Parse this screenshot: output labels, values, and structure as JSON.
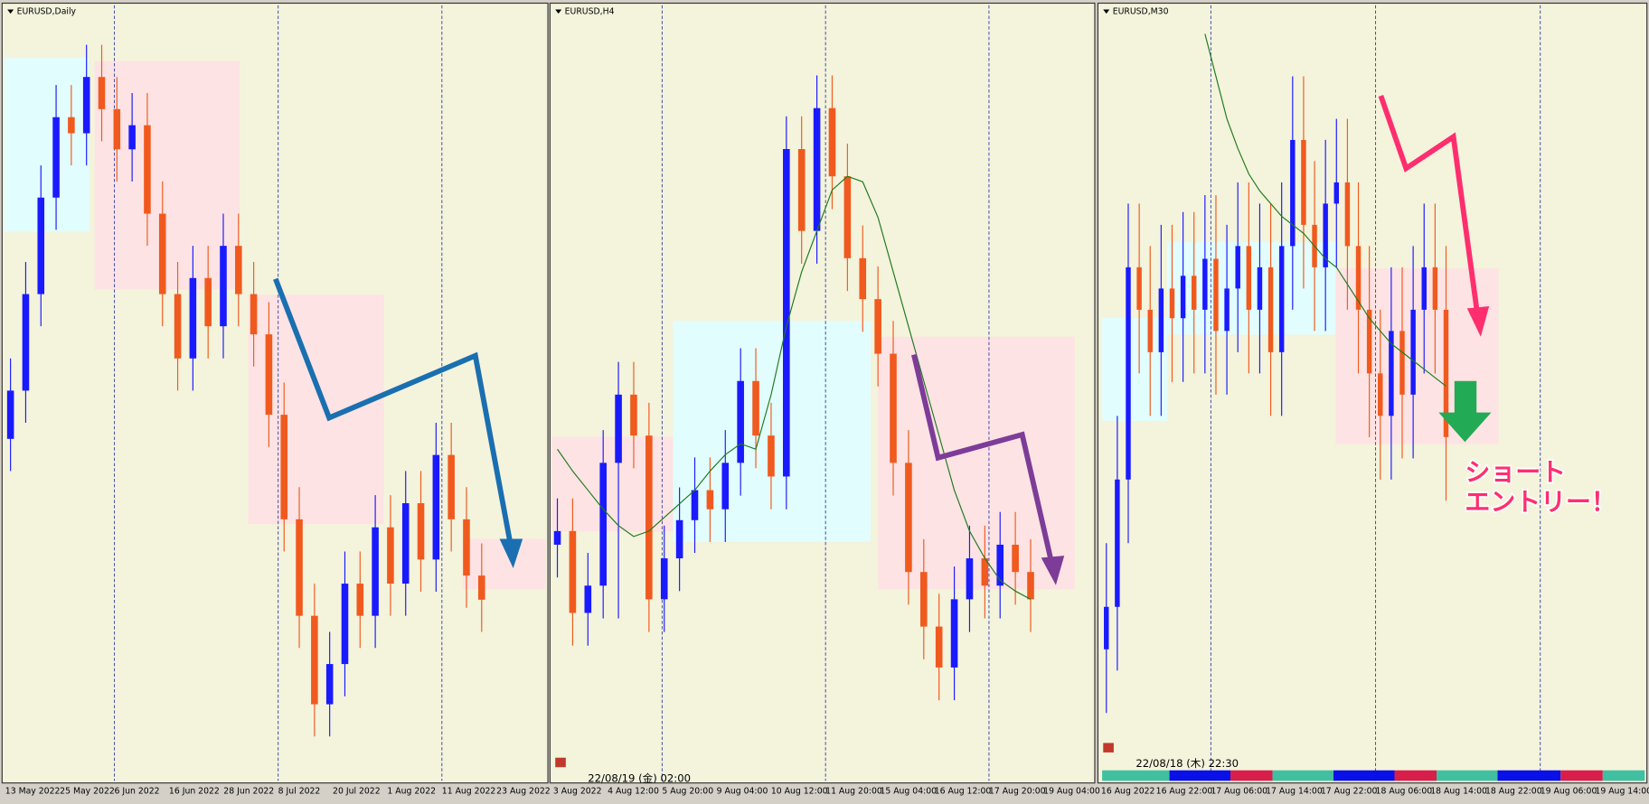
{
  "chart_data": [
    {
      "type": "candlestick",
      "title": "EURUSD,Daily",
      "x_labels": [
        "13 May 2022",
        "25 May 2022",
        "6 Jun 2022",
        "16 Jun 2022",
        "28 Jun 2022",
        "8 Jul 2022",
        "20 Jul 2022",
        "1 Aug 2022",
        "11 Aug 2022",
        "23 Aug 2022"
      ],
      "ylim": [
        0.99,
        1.085
      ],
      "series": [
        {
          "up_color": "#1a1aff",
          "down_color": "#f05a1e",
          "open": [
            1.032,
            1.038,
            1.05,
            1.062,
            1.072,
            1.07,
            1.077,
            1.073,
            1.068,
            1.071,
            1.06,
            1.05,
            1.042,
            1.052,
            1.046,
            1.056,
            1.05,
            1.045,
            1.035,
            1.022,
            1.01,
            0.999,
            1.004,
            1.014,
            1.01,
            1.021,
            1.014,
            1.024,
            1.017,
            1.03,
            1.022,
            1.015
          ],
          "high": [
            1.042,
            1.054,
            1.066,
            1.076,
            1.076,
            1.081,
            1.081,
            1.077,
            1.075,
            1.075,
            1.064,
            1.054,
            1.056,
            1.056,
            1.06,
            1.06,
            1.054,
            1.049,
            1.039,
            1.026,
            1.014,
            1.008,
            1.018,
            1.018,
            1.025,
            1.025,
            1.028,
            1.028,
            1.034,
            1.034,
            1.026,
            1.019
          ],
          "low": [
            1.028,
            1.034,
            1.046,
            1.058,
            1.066,
            1.066,
            1.069,
            1.064,
            1.064,
            1.056,
            1.046,
            1.038,
            1.038,
            1.042,
            1.042,
            1.046,
            1.041,
            1.031,
            1.018,
            1.006,
            0.995,
            0.995,
            1.0,
            1.006,
            1.006,
            1.01,
            1.01,
            1.013,
            1.013,
            1.018,
            1.011,
            1.008
          ],
          "close": [
            1.038,
            1.05,
            1.062,
            1.072,
            1.07,
            1.077,
            1.073,
            1.068,
            1.071,
            1.06,
            1.05,
            1.042,
            1.052,
            1.046,
            1.056,
            1.05,
            1.045,
            1.035,
            1.022,
            1.01,
            0.999,
            1.004,
            1.014,
            1.01,
            1.021,
            1.014,
            1.024,
            1.017,
            1.03,
            1.022,
            1.015,
            1.012
          ]
        }
      ],
      "lines": []
    },
    {
      "type": "candlestick",
      "title": "EURUSD,H4",
      "timestamp": "22/08/19 (金) 02:00",
      "x_labels": [
        "3 Aug 2022",
        "4 Aug 12:00",
        "5 Aug 20:00",
        "9 Aug 04:00",
        "10 Aug 12:00",
        "11 Aug 20:00",
        "15 Aug 04:00",
        "16 Aug 12:00",
        "17 Aug 20:00",
        "19 Aug 04:00"
      ],
      "ylim": [
        1.01,
        1.038
      ],
      "series": [
        {
          "up_color": "#1a1aff",
          "down_color": "#f05a1e",
          "open": [
            1.0185,
            1.019,
            1.016,
            1.017,
            1.0215,
            1.024,
            1.0225,
            1.0165,
            1.018,
            1.0194,
            1.0205,
            1.0198,
            1.0215,
            1.0245,
            1.0225,
            1.021,
            1.033,
            1.03,
            1.0345,
            1.032,
            1.029,
            1.0275,
            1.0255,
            1.0215,
            1.0175,
            1.0155,
            1.014,
            1.0165,
            1.018,
            1.017,
            1.0185,
            1.0175
          ],
          "high": [
            1.0202,
            1.0202,
            1.0182,
            1.0227,
            1.0252,
            1.0252,
            1.0237,
            1.0192,
            1.0206,
            1.0217,
            1.0217,
            1.0227,
            1.0257,
            1.0257,
            1.0237,
            1.0342,
            1.0342,
            1.0357,
            1.0357,
            1.0332,
            1.0302,
            1.0287,
            1.0267,
            1.0227,
            1.0187,
            1.0167,
            1.0177,
            1.0192,
            1.0192,
            1.0197,
            1.0197,
            1.0187
          ],
          "low": [
            1.0173,
            1.0148,
            1.0148,
            1.0158,
            1.0158,
            1.0213,
            1.0153,
            1.0153,
            1.0168,
            1.0182,
            1.0186,
            1.0186,
            1.0203,
            1.0213,
            1.0198,
            1.0198,
            1.0288,
            1.0288,
            1.0308,
            1.0278,
            1.0263,
            1.0243,
            1.0203,
            1.0163,
            1.0143,
            1.0128,
            1.0128,
            1.0153,
            1.0158,
            1.0158,
            1.0163,
            1.0153
          ],
          "close": [
            1.019,
            1.016,
            1.017,
            1.0215,
            1.024,
            1.0225,
            1.0165,
            1.018,
            1.0194,
            1.0205,
            1.0198,
            1.0215,
            1.0245,
            1.0225,
            1.021,
            1.033,
            1.03,
            1.0345,
            1.032,
            1.029,
            1.0275,
            1.0255,
            1.0215,
            1.0175,
            1.0155,
            1.014,
            1.0165,
            1.018,
            1.017,
            1.0185,
            1.0175,
            1.0165
          ]
        }
      ],
      "lines": [
        {
          "color": "#1e7a1e",
          "values": [
            1.022,
            1.0212,
            1.0205,
            1.0198,
            1.0192,
            1.0188,
            1.019,
            1.0195,
            1.02,
            1.0205,
            1.0212,
            1.0218,
            1.0222,
            1.022,
            1.024,
            1.0265,
            1.0285,
            1.03,
            1.0315,
            1.032,
            1.0318,
            1.0305,
            1.0285,
            1.0265,
            1.0245,
            1.0225,
            1.0205,
            1.019,
            1.018,
            1.0172,
            1.0168,
            1.0165
          ]
        }
      ]
    },
    {
      "type": "candlestick",
      "title": "EURUSD,M30",
      "timestamp": "22/08/18 (木) 22:30",
      "x_labels": [
        "16 Aug 2022",
        "16 Aug 22:00",
        "17 Aug 06:00",
        "17 Aug 14:00",
        "17 Aug 22:00",
        "18 Aug 06:00",
        "18 Aug 14:00",
        "18 Aug 22:00",
        "19 Aug 06:00",
        "19 Aug 14:00"
      ],
      "ylim": [
        1.004,
        1.022
      ],
      "annotations": [
        "ショート",
        "エントリー！"
      ],
      "series": [
        {
          "up_color": "#1a1aff",
          "down_color": "#f05a1e",
          "open": [
            1.007,
            1.008,
            1.011,
            1.016,
            1.015,
            1.014,
            1.0155,
            1.0148,
            1.0158,
            1.015,
            1.0162,
            1.0145,
            1.0155,
            1.0165,
            1.015,
            1.016,
            1.014,
            1.0165,
            1.019,
            1.017,
            1.016,
            1.0175,
            1.018,
            1.0165,
            1.015,
            1.0135,
            1.0125,
            1.0145,
            1.013,
            1.015,
            1.016,
            1.015
          ],
          "high": [
            1.0095,
            1.0125,
            1.0175,
            1.0175,
            1.0165,
            1.017,
            1.017,
            1.0173,
            1.0173,
            1.0177,
            1.0177,
            1.017,
            1.018,
            1.018,
            1.0175,
            1.0175,
            1.018,
            1.0205,
            1.0205,
            1.0185,
            1.019,
            1.0195,
            1.0195,
            1.018,
            1.0165,
            1.015,
            1.016,
            1.016,
            1.0165,
            1.0175,
            1.0175,
            1.0165
          ],
          "low": [
            1.0055,
            1.0065,
            1.0095,
            1.0135,
            1.0125,
            1.0125,
            1.0133,
            1.0133,
            1.0135,
            1.0135,
            1.013,
            1.013,
            1.014,
            1.0135,
            1.0135,
            1.0125,
            1.0125,
            1.015,
            1.0155,
            1.0145,
            1.0145,
            1.016,
            1.015,
            1.0135,
            1.012,
            1.011,
            1.011,
            1.0115,
            1.0115,
            1.0135,
            1.0135,
            1.0105
          ],
          "close": [
            1.008,
            1.011,
            1.016,
            1.015,
            1.014,
            1.0155,
            1.0148,
            1.0158,
            1.015,
            1.0162,
            1.0145,
            1.0155,
            1.0165,
            1.015,
            1.016,
            1.014,
            1.0165,
            1.019,
            1.017,
            1.016,
            1.0175,
            1.018,
            1.0165,
            1.015,
            1.0135,
            1.0125,
            1.0145,
            1.013,
            1.015,
            1.016,
            1.015,
            1.012
          ]
        }
      ],
      "lines": [
        {
          "color": "#1e7a1e",
          "values": [
            null,
            null,
            null,
            null,
            null,
            null,
            null,
            null,
            null,
            1.0215,
            1.0205,
            1.0195,
            1.0188,
            1.0182,
            1.0178,
            1.0175,
            1.0172,
            1.017,
            1.0168,
            1.0165,
            1.0162,
            1.016,
            1.0156,
            1.0152,
            1.0148,
            1.0145,
            1.0142,
            1.014,
            1.0138,
            1.0136,
            1.0134,
            1.0132
          ]
        }
      ]
    }
  ]
}
